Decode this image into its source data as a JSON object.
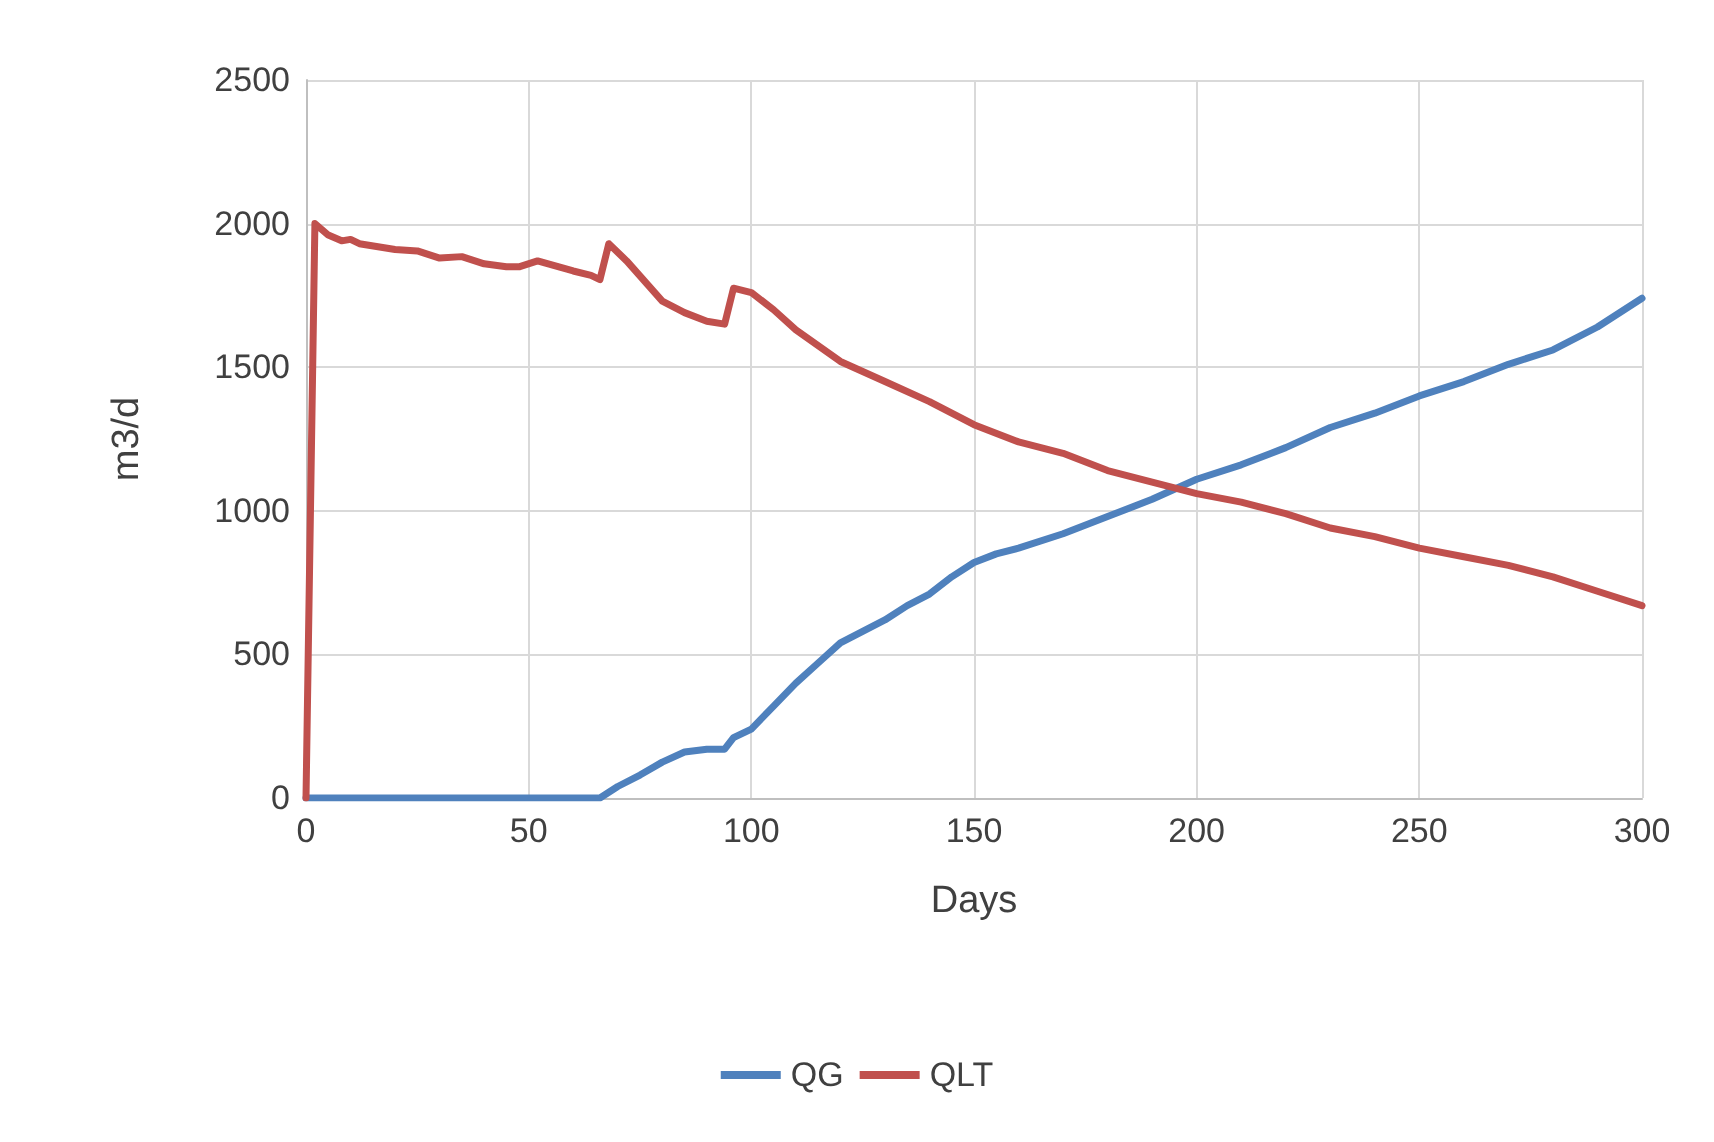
{
  "chart_data": {
    "type": "line",
    "xlabel": "Days",
    "ylabel": "m3/d",
    "xlim": [
      0,
      300
    ],
    "xticks": [
      0,
      50,
      100,
      150,
      200,
      250,
      300
    ],
    "ylim": [
      0,
      2500
    ],
    "yticks": [
      0,
      500,
      1000,
      1500,
      2000,
      2500
    ],
    "grid": true,
    "legend": "bottom",
    "marker": "none",
    "line_style": "solid",
    "series": [
      {
        "name": "QG",
        "color": "#4f81bd",
        "x": [
          0,
          20,
          40,
          60,
          66,
          70,
          75,
          80,
          85,
          90,
          94,
          96,
          100,
          105,
          110,
          115,
          120,
          125,
          130,
          135,
          140,
          145,
          150,
          155,
          160,
          170,
          180,
          190,
          200,
          210,
          220,
          230,
          240,
          250,
          260,
          270,
          280,
          290,
          300
        ],
        "values": [
          0,
          0,
          0,
          0,
          0,
          40,
          80,
          125,
          160,
          170,
          170,
          210,
          240,
          320,
          400,
          470,
          540,
          580,
          620,
          670,
          710,
          770,
          820,
          850,
          870,
          920,
          980,
          1040,
          1110,
          1160,
          1220,
          1290,
          1340,
          1400,
          1450,
          1510,
          1560,
          1640,
          1740
        ]
      },
      {
        "name": "QLT",
        "color": "#c0504d",
        "x": [
          0,
          2,
          5,
          8,
          10,
          12,
          20,
          25,
          30,
          35,
          40,
          45,
          48,
          52,
          60,
          64,
          66,
          68,
          72,
          80,
          85,
          90,
          94,
          96,
          100,
          105,
          110,
          120,
          130,
          140,
          150,
          160,
          170,
          180,
          190,
          200,
          210,
          220,
          230,
          240,
          250,
          260,
          270,
          280,
          290,
          300
        ],
        "values": [
          0,
          2000,
          1960,
          1940,
          1945,
          1930,
          1910,
          1905,
          1880,
          1885,
          1860,
          1850,
          1850,
          1870,
          1835,
          1820,
          1805,
          1930,
          1870,
          1730,
          1690,
          1660,
          1650,
          1775,
          1760,
          1700,
          1630,
          1520,
          1450,
          1380,
          1300,
          1240,
          1200,
          1140,
          1100,
          1060,
          1030,
          990,
          940,
          910,
          870,
          840,
          810,
          770,
          720,
          670
        ]
      }
    ]
  }
}
